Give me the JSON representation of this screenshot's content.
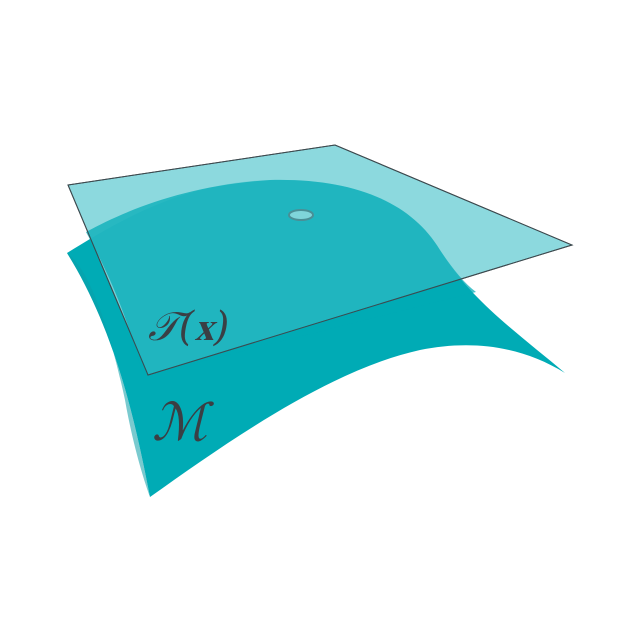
{
  "labels": {
    "tangent_space": "𝒯(𝐱)",
    "manifold": "ℳ"
  },
  "colors": {
    "background": "#ffffff",
    "manifold_fill": "#00abb5",
    "manifold_shade": "#0b9ea8",
    "tangent_plane_fill": "#7fd5da",
    "tangent_plane_stroke": "#3d4a4f",
    "point_marker": "#7fd5da",
    "point_marker_stroke": "#4a8f96",
    "label_text": "#3a3f44"
  },
  "icons": {
    "point": "tangent-point-icon"
  }
}
